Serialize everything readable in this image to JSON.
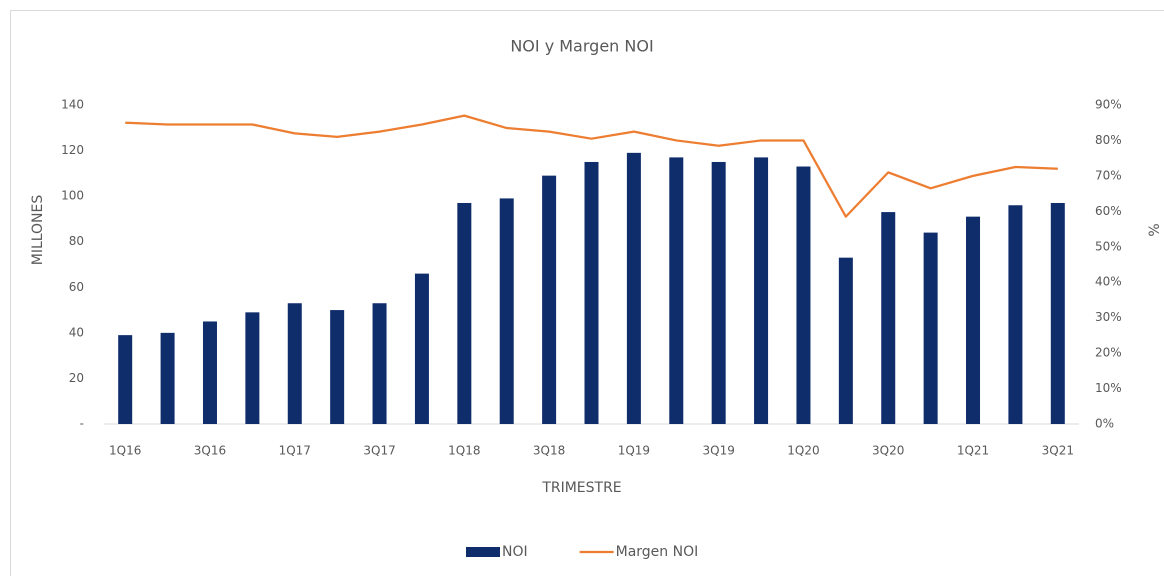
{
  "chart_data": {
    "type": "combo",
    "title": "NOI y Margen NOI",
    "x_label": "TRIMESTRE",
    "y_label": "MILLONES",
    "y2_label": "%",
    "categories": [
      "1Q16",
      null,
      "3Q16",
      null,
      "1Q17",
      null,
      "3Q17",
      null,
      "1Q18",
      null,
      "3Q18",
      null,
      "1Q19",
      null,
      "3Q19",
      null,
      "1Q20",
      null,
      "3Q20",
      null,
      "1Q21",
      null,
      "3Q21"
    ],
    "series": [
      {
        "name": "NOI",
        "type": "bar",
        "color": "#0f2d6b",
        "values": [
          39,
          40,
          45,
          49,
          53,
          50,
          53,
          66,
          97,
          99,
          109,
          115,
          119,
          117,
          115,
          117,
          113,
          73,
          93,
          84,
          91,
          96,
          97
        ]
      },
      {
        "name": "Margen NOI",
        "type": "line",
        "axis": "y2",
        "color": "#ed7d31",
        "values": [
          85,
          84.5,
          84.5,
          84.5,
          82,
          81,
          82.5,
          84.5,
          87,
          83.5,
          82.5,
          80.5,
          82.5,
          80,
          78.5,
          80,
          80,
          58.5,
          71,
          66.5,
          70,
          72.5,
          72
        ]
      }
    ],
    "ylim": [
      0,
      140
    ],
    "yticks": [
      {
        "value": 0,
        "label": "-"
      },
      20,
      40,
      60,
      80,
      100,
      120,
      140
    ],
    "y2lim": [
      0,
      90
    ],
    "y2ticks": [
      {
        "value": 0,
        "label": "0%"
      },
      {
        "value": 10,
        "label": "10%"
      },
      {
        "value": 20,
        "label": "20%"
      },
      {
        "value": 30,
        "label": "30%"
      },
      {
        "value": 40,
        "label": "40%"
      },
      {
        "value": 50,
        "label": "50%"
      },
      {
        "value": 60,
        "label": "60%"
      },
      {
        "value": 70,
        "label": "70%"
      },
      {
        "value": 80,
        "label": "80%"
      },
      {
        "value": 90,
        "label": "90%"
      }
    ],
    "legend": "bottom"
  }
}
